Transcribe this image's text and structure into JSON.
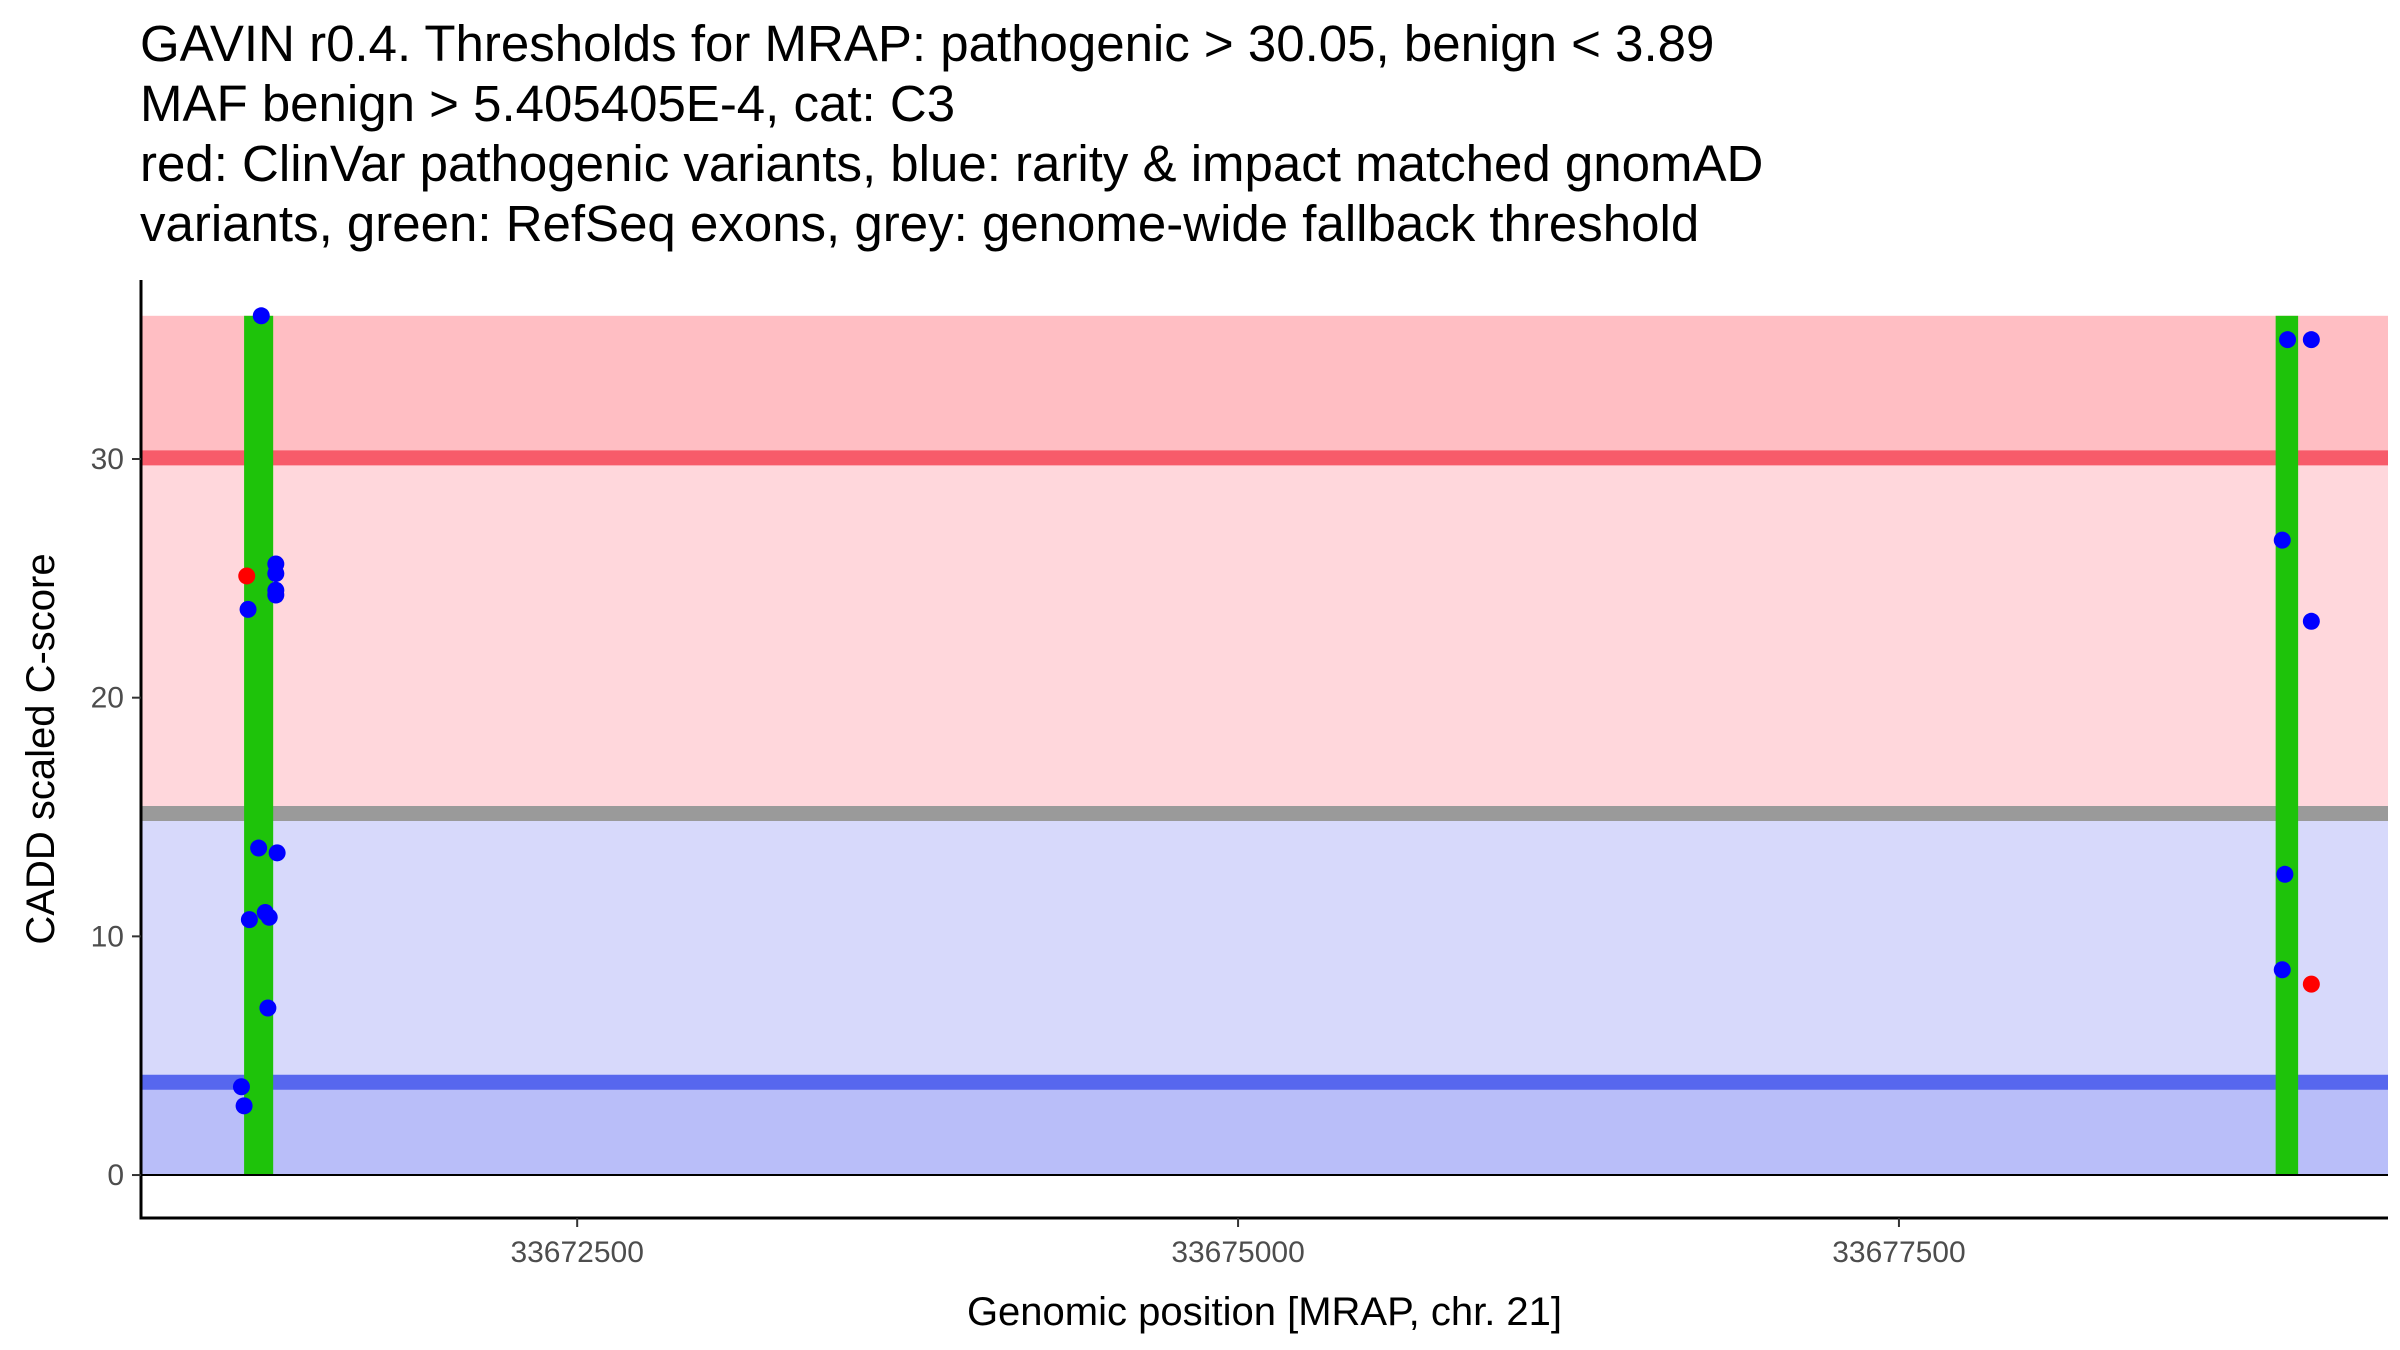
{
  "title_lines": [
    "GAVIN r0.4. Thresholds for MRAP: pathogenic > 30.05, benign < 3.89",
    "MAF benign > 5.405405E-4, cat: C3",
    "red: ClinVar pathogenic variants, blue: rarity & impact matched gnomAD",
    "variants, green: RefSeq exons, grey: genome-wide fallback threshold"
  ],
  "chart_data": {
    "type": "scatter",
    "xlabel": "Genomic position [MRAP, chr. 21]",
    "ylabel": "CADD scaled C-score",
    "xlim": [
      33670850,
      33679350
    ],
    "ylim": [
      -1.8,
      37.5
    ],
    "x_ticks": [
      {
        "value": 33672500,
        "label": "33672500"
      },
      {
        "value": 33675000,
        "label": "33675000"
      },
      {
        "value": 33677500,
        "label": "33677500"
      }
    ],
    "y_ticks": [
      {
        "value": 0,
        "label": "0"
      },
      {
        "value": 10,
        "label": "10"
      },
      {
        "value": 20,
        "label": "20"
      },
      {
        "value": 30,
        "label": "30"
      }
    ],
    "regions": [
      {
        "name": "pathogenic-high",
        "y0": 30.05,
        "y1": 36,
        "color": "#ffbec3"
      },
      {
        "name": "pathogenic-mid",
        "y0": 15.15,
        "y1": 30.05,
        "color": "#ffd7dc"
      },
      {
        "name": "benign-mid",
        "y0": 3.89,
        "y1": 15.15,
        "color": "#d7d9fb"
      },
      {
        "name": "benign-low",
        "y0": 0,
        "y1": 3.89,
        "color": "#b9bef9"
      }
    ],
    "threshold_lines": [
      {
        "name": "pathogenic-threshold",
        "y": 30.05,
        "color": "#f75b6a"
      },
      {
        "name": "fallback-threshold",
        "y": 15.15,
        "color": "#9a9a9a"
      },
      {
        "name": "benign-threshold",
        "y": 3.89,
        "color": "#5767ee"
      }
    ],
    "exons": [
      {
        "start": 33671240,
        "end": 33671350,
        "color": "#1ec30a"
      },
      {
        "start": 33678925,
        "end": 33679010,
        "color": "#1ec30a"
      }
    ],
    "series": [
      {
        "name": "ClinVar pathogenic variants",
        "color": "#ff0000",
        "points": [
          [
            33671250,
            25.1
          ],
          [
            33679060,
            8.0
          ]
        ]
      },
      {
        "name": "rarity & impact matched gnomAD variants",
        "color": "#0000ff",
        "points": [
          [
            33671305,
            36.0
          ],
          [
            33671360,
            25.6
          ],
          [
            33671360,
            25.2
          ],
          [
            33671360,
            24.5
          ],
          [
            33671360,
            24.3
          ],
          [
            33671255,
            23.7
          ],
          [
            33671295,
            13.7
          ],
          [
            33671365,
            13.5
          ],
          [
            33671260,
            10.7
          ],
          [
            33671320,
            11.0
          ],
          [
            33671335,
            10.8
          ],
          [
            33671330,
            7.0
          ],
          [
            33671230,
            3.7
          ],
          [
            33671240,
            2.9
          ],
          [
            33678970,
            35.0
          ],
          [
            33679060,
            35.0
          ],
          [
            33678950,
            26.6
          ],
          [
            33679060,
            23.2
          ],
          [
            33678960,
            12.6
          ],
          [
            33678950,
            8.6
          ]
        ]
      }
    ]
  }
}
